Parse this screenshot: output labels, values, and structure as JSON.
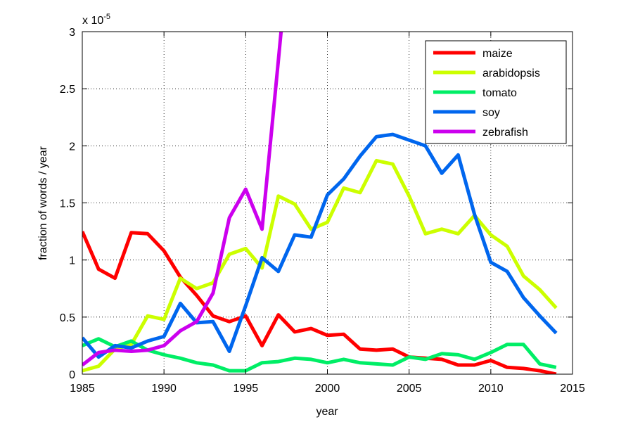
{
  "chart_data": {
    "type": "line",
    "xlabel": "year",
    "ylabel": "fraction of words / year",
    "y_multiplier": "x 10",
    "y_multiplier_exp": "-5",
    "xlim": [
      1985,
      2015
    ],
    "ylim": [
      0,
      3
    ],
    "grid": true,
    "legend_position": "top-right",
    "xticks": [
      "1985",
      "1990",
      "1995",
      "2000",
      "2005",
      "2010",
      "2015"
    ],
    "yticks": [
      "0",
      "0.5",
      "1",
      "1.5",
      "2",
      "2.5",
      "3"
    ],
    "series": [
      {
        "name": "maize",
        "color": "#ff0000",
        "x": [
          1985,
          1986,
          1987,
          1988,
          1989,
          1990,
          1991,
          1992,
          1993,
          1994,
          1995,
          1996,
          1997,
          1998,
          1999,
          2000,
          2001,
          2002,
          2003,
          2004,
          2005,
          2006,
          2007,
          2008,
          2009,
          2010,
          2011,
          2012,
          2013,
          2014
        ],
        "y": [
          1.25,
          0.92,
          0.84,
          1.24,
          1.23,
          1.08,
          0.85,
          0.69,
          0.51,
          0.46,
          0.51,
          0.25,
          0.52,
          0.37,
          0.4,
          0.34,
          0.35,
          0.22,
          0.21,
          0.22,
          0.15,
          0.14,
          0.13,
          0.08,
          0.08,
          0.12,
          0.06,
          0.05,
          0.03,
          0.0
        ]
      },
      {
        "name": "arabidopsis",
        "color": "#ccff00",
        "x": [
          1985,
          1986,
          1987,
          1988,
          1989,
          1990,
          1991,
          1992,
          1993,
          1994,
          1995,
          1996,
          1997,
          1998,
          1999,
          2000,
          2001,
          2002,
          2003,
          2004,
          2005,
          2006,
          2007,
          2008,
          2009,
          2010,
          2011,
          2012,
          2013,
          2014
        ],
        "y": [
          0.03,
          0.07,
          0.22,
          0.26,
          0.51,
          0.48,
          0.84,
          0.75,
          0.8,
          1.05,
          1.1,
          0.93,
          1.56,
          1.49,
          1.27,
          1.33,
          1.63,
          1.59,
          1.87,
          1.84,
          1.56,
          1.23,
          1.27,
          1.23,
          1.39,
          1.22,
          1.12,
          0.86,
          0.74,
          0.58
        ]
      },
      {
        "name": "tomato",
        "color": "#00ee66",
        "x": [
          1985,
          1986,
          1987,
          1988,
          1989,
          1990,
          1991,
          1992,
          1993,
          1994,
          1995,
          1996,
          1997,
          1998,
          1999,
          2000,
          2001,
          2002,
          2003,
          2004,
          2005,
          2006,
          2007,
          2008,
          2009,
          2010,
          2011,
          2012,
          2013,
          2014
        ],
        "y": [
          0.25,
          0.31,
          0.24,
          0.29,
          0.21,
          0.17,
          0.14,
          0.1,
          0.08,
          0.03,
          0.03,
          0.1,
          0.11,
          0.14,
          0.13,
          0.1,
          0.13,
          0.1,
          0.09,
          0.08,
          0.15,
          0.13,
          0.18,
          0.17,
          0.13,
          0.19,
          0.26,
          0.26,
          0.09,
          0.06
        ]
      },
      {
        "name": "soy",
        "color": "#0066ee",
        "x": [
          1985,
          1986,
          1987,
          1988,
          1989,
          1990,
          1991,
          1992,
          1993,
          1994,
          1995,
          1996,
          1997,
          1998,
          1999,
          2000,
          2001,
          2002,
          2003,
          2004,
          2005,
          2006,
          2007,
          2008,
          2009,
          2010,
          2011,
          2012,
          2013,
          2014
        ],
        "y": [
          0.32,
          0.15,
          0.25,
          0.23,
          0.29,
          0.33,
          0.62,
          0.45,
          0.46,
          0.2,
          0.6,
          1.02,
          0.9,
          1.22,
          1.2,
          1.57,
          1.71,
          1.91,
          2.08,
          2.1,
          2.05,
          2.0,
          1.76,
          1.92,
          1.4,
          0.98,
          0.9,
          0.67,
          0.51,
          0.36
        ]
      },
      {
        "name": "zebrafish",
        "color": "#cc00ee",
        "x": [
          1985,
          1986,
          1987,
          1988,
          1989,
          1990,
          1991,
          1992,
          1993,
          1994,
          1995,
          1996,
          1997,
          1997.2
        ],
        "y": [
          0.08,
          0.19,
          0.21,
          0.2,
          0.21,
          0.25,
          0.38,
          0.46,
          0.71,
          1.37,
          1.62,
          1.27,
          2.75,
          3.05
        ]
      }
    ]
  }
}
